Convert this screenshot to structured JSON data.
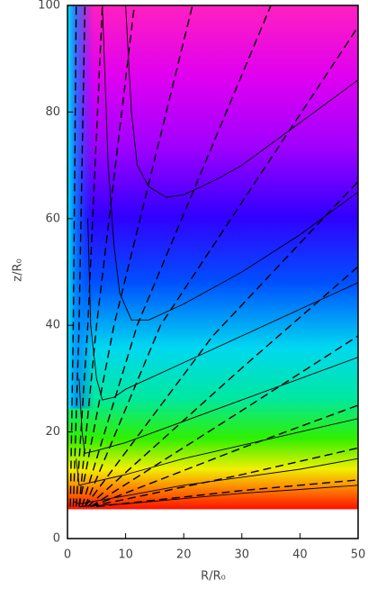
{
  "chart_data": {
    "type": "contour-field",
    "xlabel": "R/R₀",
    "ylabel": "z/R₀",
    "xlim": [
      0,
      50
    ],
    "ylim": [
      0,
      100
    ],
    "xticks": [
      0,
      10,
      20,
      30,
      40,
      50
    ],
    "yticks": [
      0,
      20,
      40,
      60,
      80,
      100
    ],
    "field_ylim": [
      5.5,
      100
    ],
    "series": [
      {
        "dash": false,
        "x": [
          10,
          11,
          12,
          14,
          17,
          20,
          25,
          30,
          35,
          40,
          45,
          50
        ],
        "y": [
          100,
          80,
          70,
          66,
          64,
          64.5,
          67,
          70,
          74,
          78,
          82,
          86
        ]
      },
      {
        "dash": false,
        "x": [
          6,
          7,
          8,
          9,
          11,
          14,
          20,
          30,
          40,
          50
        ],
        "y": [
          100,
          70,
          55,
          46,
          41,
          41,
          44,
          50,
          57,
          65
        ]
      },
      {
        "dash": false,
        "x": [
          3.5,
          4,
          5,
          6,
          8,
          10,
          20,
          30,
          40,
          50
        ],
        "y": [
          60,
          40,
          30,
          26,
          26.5,
          28,
          33,
          38,
          43,
          48
        ]
      },
      {
        "dash": false,
        "x": [
          2,
          2.5,
          3,
          5,
          10,
          20,
          30,
          40,
          50
        ],
        "y": [
          30,
          20,
          16,
          16.5,
          18,
          22,
          26,
          30,
          34
        ]
      },
      {
        "dash": false,
        "x": [
          1.5,
          2,
          4,
          10,
          20,
          30,
          40,
          50
        ],
        "y": [
          15,
          10,
          10.5,
          12,
          15,
          17.5,
          20,
          22.5
        ]
      },
      {
        "dash": false,
        "x": [
          1,
          2,
          10,
          20,
          30,
          40,
          50
        ],
        "y": [
          7,
          6.5,
          8,
          10,
          11.5,
          13,
          15
        ]
      },
      {
        "dash": false,
        "x": [
          2,
          10,
          20,
          30,
          40,
          50
        ],
        "y": [
          6,
          6.5,
          7.5,
          8.5,
          9.2,
          10
        ]
      },
      {
        "dash": true,
        "x": [
          0.5,
          1,
          1.5
        ],
        "y": [
          6,
          40,
          100
        ]
      },
      {
        "dash": true,
        "x": [
          1,
          2,
          3
        ],
        "y": [
          6,
          40,
          100
        ]
      },
      {
        "dash": true,
        "x": [
          1.5,
          3.5,
          6
        ],
        "y": [
          6,
          40,
          100
        ]
      },
      {
        "dash": true,
        "x": [
          2,
          5,
          11.5
        ],
        "y": [
          6,
          40,
          100
        ]
      },
      {
        "dash": true,
        "x": [
          2,
          8,
          21.5
        ],
        "y": [
          6,
          40,
          100
        ]
      },
      {
        "dash": true,
        "x": [
          2.5,
          12,
          35
        ],
        "y": [
          6,
          40,
          100
        ]
      },
      {
        "dash": true,
        "x": [
          3,
          16,
          50
        ],
        "y": [
          6,
          40,
          96
        ]
      },
      {
        "dash": true,
        "x": [
          3,
          25,
          50
        ],
        "y": [
          6,
          38,
          67
        ]
      },
      {
        "dash": true,
        "x": [
          3.5,
          30,
          50
        ],
        "y": [
          6,
          32,
          51
        ]
      },
      {
        "dash": true,
        "x": [
          4,
          30,
          50
        ],
        "y": [
          6,
          24,
          38
        ]
      },
      {
        "dash": true,
        "x": [
          4,
          30,
          50
        ],
        "y": [
          6,
          17,
          25
        ]
      },
      {
        "dash": true,
        "x": [
          4,
          30,
          50
        ],
        "y": [
          6,
          12,
          17
        ]
      },
      {
        "dash": true,
        "x": [
          5,
          30,
          50
        ],
        "y": [
          6,
          9,
          11
        ]
      }
    ]
  }
}
